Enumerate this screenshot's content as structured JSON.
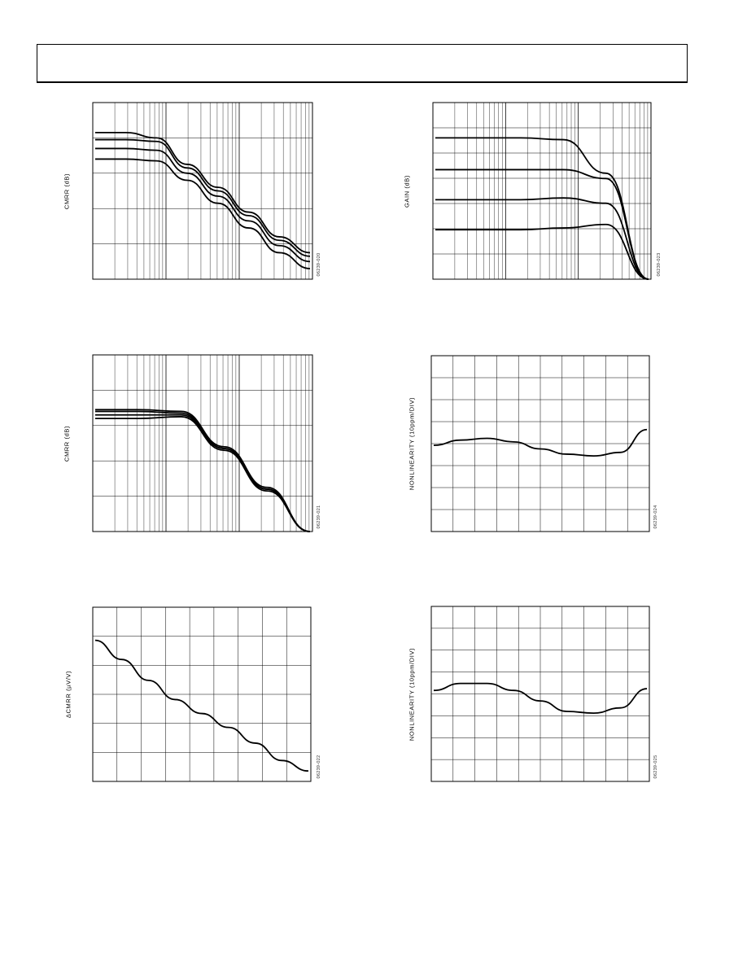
{
  "header": {
    "title": ""
  },
  "chart_data": [
    {
      "type": "line",
      "scale": "log-x",
      "ylabel": "CMRR (dB)",
      "fig_id": "06239-020",
      "series": [
        {
          "values": [
            0.83,
            0.83,
            0.8,
            0.65,
            0.52,
            0.38,
            0.24,
            0.15
          ]
        },
        {
          "values": [
            0.79,
            0.79,
            0.78,
            0.63,
            0.5,
            0.36,
            0.22,
            0.13
          ]
        },
        {
          "values": [
            0.74,
            0.74,
            0.73,
            0.6,
            0.47,
            0.33,
            0.19,
            0.1
          ]
        },
        {
          "values": [
            0.68,
            0.68,
            0.67,
            0.56,
            0.43,
            0.29,
            0.15,
            0.06
          ]
        }
      ]
    },
    {
      "type": "line",
      "scale": "log-x",
      "ylabel": "GAIN (dB)",
      "fig_id": "06239-023",
      "series": [
        {
          "values": [
            0.8,
            0.8,
            0.8,
            0.79,
            0.6,
            0.0
          ]
        },
        {
          "values": [
            0.62,
            0.62,
            0.62,
            0.62,
            0.57,
            0.0
          ]
        },
        {
          "values": [
            0.45,
            0.45,
            0.45,
            0.46,
            0.43,
            0.0
          ]
        },
        {
          "values": [
            0.28,
            0.28,
            0.28,
            0.29,
            0.31,
            0.0
          ]
        }
      ]
    },
    {
      "type": "line",
      "scale": "log-x",
      "ylabel": "CMRR (dB)",
      "fig_id": "06239-021",
      "series": [
        {
          "values": [
            0.69,
            0.69,
            0.68,
            0.48,
            0.25,
            0.0
          ]
        },
        {
          "values": [
            0.68,
            0.68,
            0.67,
            0.47,
            0.24,
            0.0
          ]
        },
        {
          "values": [
            0.66,
            0.66,
            0.66,
            0.47,
            0.24,
            0.0
          ]
        },
        {
          "values": [
            0.64,
            0.64,
            0.65,
            0.46,
            0.23,
            0.0
          ]
        }
      ]
    },
    {
      "type": "line",
      "ylabel": "NONLINEARITY (10ppm/DIV)",
      "fig_id": "06239-024",
      "series": [
        {
          "values": [
            0.49,
            0.52,
            0.53,
            0.51,
            0.47,
            0.44,
            0.43,
            0.45,
            0.58
          ]
        }
      ]
    },
    {
      "type": "line",
      "ylabel": "ΔCMRR (µV/V)",
      "fig_id": "06239-022",
      "series": [
        {
          "values": [
            0.81,
            0.7,
            0.58,
            0.47,
            0.39,
            0.31,
            0.22,
            0.12,
            0.06
          ]
        }
      ]
    },
    {
      "type": "line",
      "ylabel": "NONLINEARITY (10ppm/DIV)",
      "fig_id": "06239-025",
      "series": [
        {
          "values": [
            0.52,
            0.56,
            0.56,
            0.52,
            0.46,
            0.4,
            0.39,
            0.42,
            0.53
          ]
        }
      ]
    }
  ]
}
